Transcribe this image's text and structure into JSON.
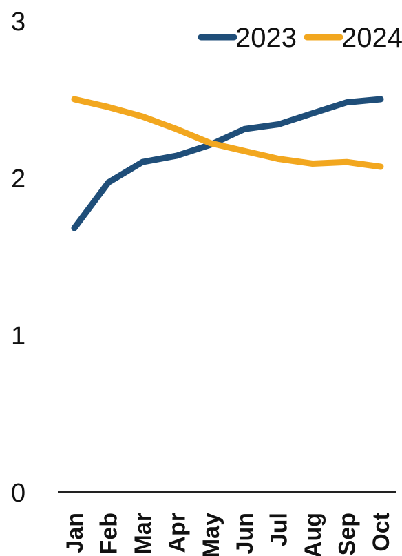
{
  "chart_data": {
    "type": "line",
    "title": "",
    "xlabel": "",
    "ylabel": "",
    "categories": [
      "Jan",
      "Feb",
      "Mar",
      "Apr",
      "May",
      "Jun",
      "Jul",
      "Aug",
      "Sep",
      "Oct"
    ],
    "ylim": [
      0,
      3
    ],
    "yticks": [
      "0",
      "1",
      "2",
      "3"
    ],
    "grid": false,
    "legend_position": "top-right",
    "series": [
      {
        "name": "2023",
        "color": "#1f4e79",
        "values": [
          1.68,
          1.97,
          2.1,
          2.14,
          2.21,
          2.31,
          2.34,
          2.41,
          2.48,
          2.5
        ]
      },
      {
        "name": "2024",
        "color": "#f2a71f",
        "values": [
          2.5,
          2.45,
          2.39,
          2.31,
          2.22,
          2.17,
          2.12,
          2.09,
          2.1,
          2.07
        ]
      }
    ]
  }
}
